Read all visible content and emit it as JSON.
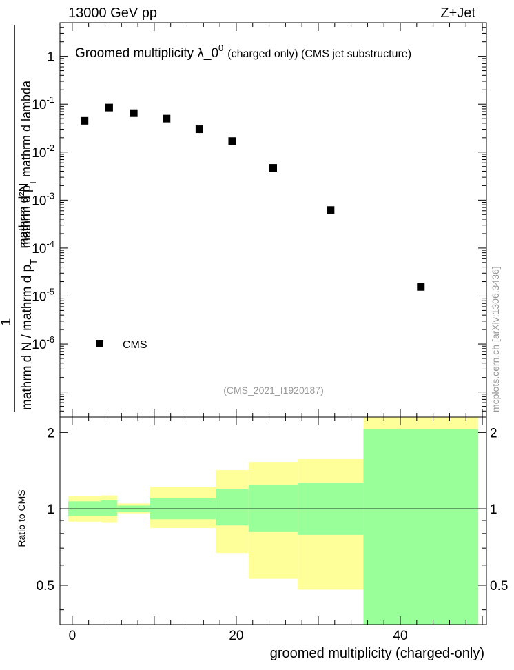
{
  "header": {
    "energy": "13000 GeV pp",
    "process": "Z+Jet"
  },
  "watermark": "mcplots.cern.ch [arXiv:1306.3436]",
  "analysis_id": "(CMS_2021_I1920187)",
  "main_panel": {
    "title_main": "Groomed multiplicity  λ_0",
    "title_sup": "0",
    "title_tail": "(charged only) (CMS jet substructure)",
    "ylabel": {
      "numerator_one": "1",
      "frac1_num": "mathrm d²N",
      "frac1_den_a": "mathrm d p",
      "frac1_den_sub": "T",
      "frac1_den_b": "mathrm d lambda",
      "frac2_a": "mathrm d N / mathrm d p",
      "frac2_sub": "T"
    },
    "yticks": [
      {
        "label": "1",
        "exp": ""
      },
      {
        "label": "10",
        "exp": "-1"
      },
      {
        "label": "10",
        "exp": "-2"
      },
      {
        "label": "10",
        "exp": "-3"
      },
      {
        "label": "10",
        "exp": "-4"
      },
      {
        "label": "10",
        "exp": "-5"
      },
      {
        "label": "10",
        "exp": "-6"
      }
    ],
    "legend": [
      {
        "label": "CMS",
        "marker": "square",
        "color": "#000000"
      }
    ]
  },
  "ratio_panel": {
    "ylabel": "Ratio to CMS",
    "ytick_labels": [
      "2",
      "1",
      "0.5"
    ],
    "xlabel": "groomed multiplicity (charged-only)",
    "xtick_labels": [
      "0",
      "20",
      "40"
    ]
  },
  "colors": {
    "inner_band": "#99ff99",
    "outer_band": "#ffff99",
    "marker": "#000000"
  },
  "chart_data": [
    {
      "type": "scatter",
      "title": "Groomed multiplicity λ_0^0 (charged only) (CMS jet substructure)",
      "series": [
        {
          "name": "CMS",
          "x": [
            1.5,
            4.5,
            7.5,
            11.5,
            15.5,
            19.5,
            24.5,
            31.5,
            42.5
          ],
          "y": [
            0.045,
            0.085,
            0.065,
            0.05,
            0.03,
            0.017,
            0.0047,
            0.00062,
            1.55e-05
          ]
        }
      ],
      "xlim": [
        -1.5,
        50.5
      ],
      "ylim": [
        3e-08,
        5
      ],
      "yscale": "log"
    },
    {
      "type": "area",
      "ylabel": "Ratio to CMS",
      "xlabel": "groomed multiplicity (charged-only)",
      "bins": [
        {
          "x0": -0.5,
          "x1": 3.5,
          "inner": [
            0.94,
            1.07
          ],
          "outer": [
            0.89,
            1.12
          ]
        },
        {
          "x0": 3.5,
          "x1": 5.5,
          "inner": [
            0.94,
            1.08
          ],
          "outer": [
            0.88,
            1.13
          ]
        },
        {
          "x0": 5.5,
          "x1": 9.5,
          "inner": [
            0.97,
            1.03
          ],
          "outer": [
            0.96,
            1.05
          ]
        },
        {
          "x0": 9.5,
          "x1": 17.5,
          "inner": [
            0.91,
            1.1
          ],
          "outer": [
            0.84,
            1.22
          ]
        },
        {
          "x0": 17.5,
          "x1": 21.5,
          "inner": [
            0.86,
            1.2
          ],
          "outer": [
            0.67,
            1.42
          ]
        },
        {
          "x0": 21.5,
          "x1": 27.5,
          "inner": [
            0.81,
            1.24
          ],
          "outer": [
            0.53,
            1.53
          ]
        },
        {
          "x0": 27.5,
          "x1": 35.5,
          "inner": [
            0.79,
            1.27
          ],
          "outer": [
            0.48,
            1.57
          ]
        },
        {
          "x0": 35.5,
          "x1": 49.5,
          "inner": [
            0.35,
            2.06
          ],
          "outer": [
            0.35,
            2.3
          ]
        }
      ],
      "reference_line": 1,
      "xlim": [
        -1.5,
        50.5
      ],
      "ylim": [
        0.35,
        2.3
      ],
      "yscale": "log"
    }
  ]
}
